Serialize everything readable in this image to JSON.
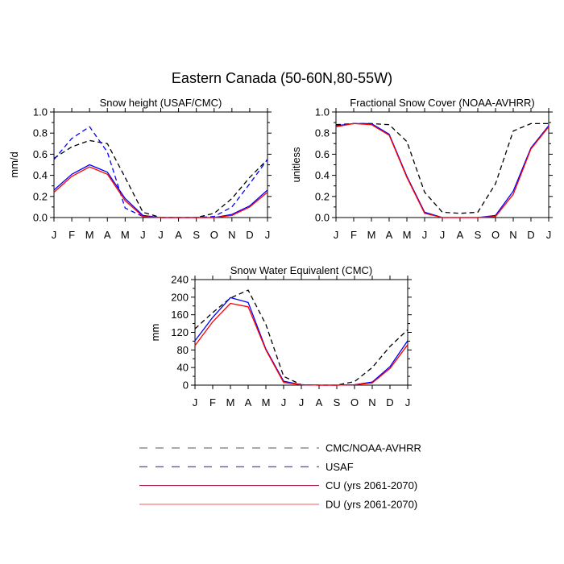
{
  "figure": {
    "title": "Eastern Canada (50-60N,80-55W)"
  },
  "months": [
    "J",
    "F",
    "M",
    "A",
    "M",
    "J",
    "J",
    "A",
    "S",
    "O",
    "N",
    "D",
    "J"
  ],
  "styles": {
    "CMC/NOAA-AVHRR": {
      "color": "#000000",
      "dash": "6,4"
    },
    "USAF": {
      "color": "#0000ff",
      "dash": "6,4"
    },
    "CU (yrs 2061-2070)": {
      "color": "#0000ff",
      "dash": ""
    },
    "DU (yrs 2061-2070)": {
      "color": "#ff0000",
      "dash": ""
    }
  },
  "legend_styles": {
    "CMC/NOAA-AVHRR": {
      "color": "#555555",
      "dash": "10,10"
    },
    "USAF": {
      "color": "#3333cc",
      "dash": "10,10"
    },
    "CU (yrs 2061-2070)": {
      "color": "#aa2255",
      "dash": ""
    },
    "DU (yrs 2061-2070)": {
      "color": "#ff6666",
      "dash": ""
    }
  },
  "legend": [
    "CMC/NOAA-AVHRR",
    "USAF",
    "CU (yrs 2061-2070)",
    "DU (yrs 2061-2070)"
  ],
  "chart_data": [
    {
      "type": "line",
      "title": "Snow height (USAF/CMC)",
      "ylabel": "mm/d",
      "xlabel": "",
      "ylim": [
        0,
        1.0
      ],
      "yticks": [
        "0.0",
        "0.2",
        "0.4",
        "0.6",
        "0.8",
        "1.0"
      ],
      "categories": [
        "J",
        "F",
        "M",
        "A",
        "M",
        "J",
        "J",
        "A",
        "S",
        "O",
        "N",
        "D",
        "J"
      ],
      "series": [
        {
          "name": "CMC/NOAA-AVHRR",
          "values": [
            0.56,
            0.67,
            0.73,
            0.7,
            0.38,
            0.05,
            0.0,
            0.0,
            0.0,
            0.04,
            0.18,
            0.38,
            0.55
          ]
        },
        {
          "name": "USAF",
          "values": [
            0.55,
            0.75,
            0.86,
            0.62,
            0.09,
            0.01,
            0.0,
            0.0,
            0.0,
            0.01,
            0.1,
            0.32,
            0.55
          ]
        },
        {
          "name": "CU (yrs 2061-2070)",
          "values": [
            0.26,
            0.41,
            0.5,
            0.43,
            0.18,
            0.02,
            0.0,
            0.0,
            0.0,
            0.0,
            0.03,
            0.11,
            0.26
          ]
        },
        {
          "name": "DU (yrs 2061-2070)",
          "values": [
            0.24,
            0.39,
            0.48,
            0.41,
            0.16,
            0.01,
            0.0,
            0.0,
            0.0,
            0.0,
            0.02,
            0.1,
            0.24
          ]
        }
      ]
    },
    {
      "type": "line",
      "title": "Fractional Snow Cover (NOAA-AVHRR)",
      "ylabel": "unitless",
      "xlabel": "",
      "ylim": [
        0,
        1.0
      ],
      "yticks": [
        "0.0",
        "0.2",
        "0.4",
        "0.6",
        "0.8",
        "1.0"
      ],
      "categories": [
        "J",
        "F",
        "M",
        "A",
        "M",
        "J",
        "J",
        "A",
        "S",
        "O",
        "N",
        "D",
        "J"
      ],
      "series": [
        {
          "name": "CMC/NOAA-AVHRR",
          "values": [
            0.88,
            0.89,
            0.89,
            0.88,
            0.72,
            0.24,
            0.05,
            0.04,
            0.05,
            0.32,
            0.82,
            0.89,
            0.89
          ]
        },
        {
          "name": "CU (yrs 2061-2070)",
          "values": [
            0.87,
            0.89,
            0.89,
            0.79,
            0.39,
            0.05,
            0.0,
            0.0,
            0.0,
            0.02,
            0.25,
            0.66,
            0.87
          ]
        },
        {
          "name": "DU (yrs 2061-2070)",
          "values": [
            0.86,
            0.89,
            0.88,
            0.78,
            0.38,
            0.04,
            0.0,
            0.0,
            0.0,
            0.01,
            0.22,
            0.65,
            0.86
          ]
        }
      ]
    },
    {
      "type": "line",
      "title": "Snow Water Equivalent (CMC)",
      "ylabel": "mm",
      "xlabel": "",
      "ylim": [
        0,
        240
      ],
      "yticks": [
        "0",
        "40",
        "80",
        "120",
        "160",
        "200",
        "240"
      ],
      "categories": [
        "J",
        "F",
        "M",
        "A",
        "M",
        "J",
        "J",
        "A",
        "S",
        "O",
        "N",
        "D",
        "J"
      ],
      "series": [
        {
          "name": "CMC/NOAA-AVHRR",
          "values": [
            128,
            165,
            198,
            216,
            138,
            20,
            1,
            0,
            0,
            8,
            40,
            88,
            126
          ]
        },
        {
          "name": "CU (yrs 2061-2070)",
          "values": [
            101,
            154,
            199,
            188,
            82,
            9,
            1,
            0,
            0,
            1,
            7,
            42,
            101
          ]
        },
        {
          "name": "DU (yrs 2061-2070)",
          "values": [
            90,
            144,
            186,
            178,
            80,
            6,
            1,
            0,
            0,
            1,
            5,
            38,
            92
          ]
        }
      ]
    }
  ]
}
